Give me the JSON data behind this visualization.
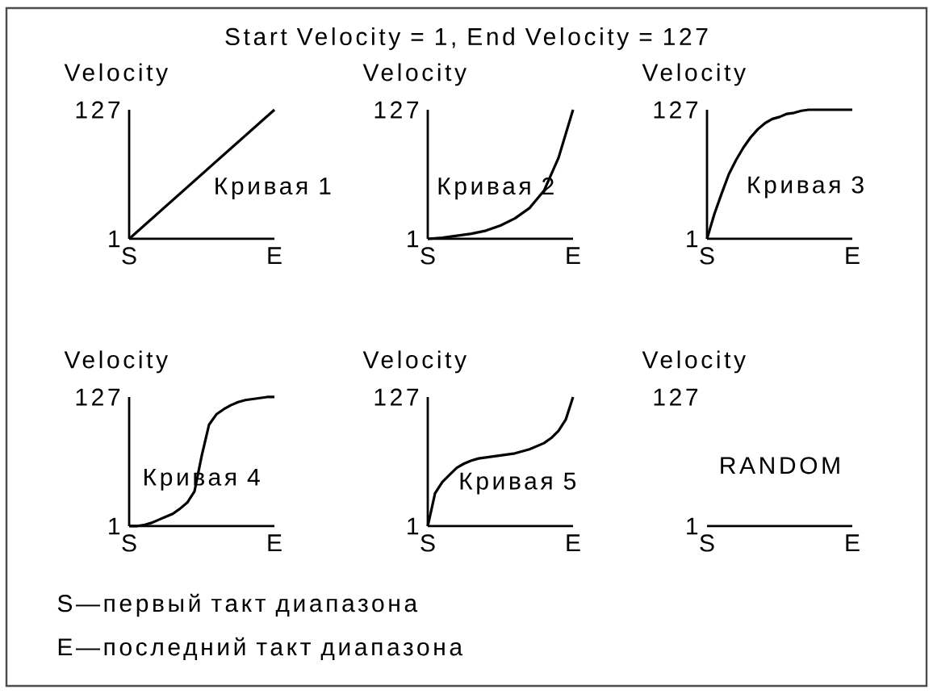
{
  "chart_data": [
    {
      "type": "other",
      "title": "Start Velocity = 1, End Velocity = 127",
      "annotations": [
        "S—первый такт диапазона",
        "E—последний такт диапазона"
      ]
    },
    {
      "type": "line",
      "ylabel": "Velocity",
      "categories": [
        "S",
        "E"
      ],
      "ylim": [
        1,
        127
      ],
      "yticks": [
        1,
        127
      ],
      "series": [
        {
          "name": "Кривая 1",
          "color": "#000000",
          "values": [
            1,
            127
          ]
        }
      ]
    },
    {
      "type": "line",
      "ylabel": "Velocity",
      "categories": [
        "S",
        null,
        null,
        null,
        null,
        null,
        null,
        null,
        null,
        null,
        "E"
      ],
      "ylim": [
        1,
        127
      ],
      "yticks": [
        1,
        127
      ],
      "series": [
        {
          "name": "Кривая 2",
          "color": "#000000",
          "values": [
            1,
            2,
            4,
            6,
            9,
            14,
            21,
            31,
            48,
            80,
            127
          ]
        }
      ]
    },
    {
      "type": "line",
      "ylabel": "Velocity",
      "categories": [
        "S",
        null,
        null,
        null,
        null,
        null,
        null,
        null,
        null,
        null,
        null,
        null,
        null,
        null,
        null,
        null,
        null,
        null,
        null,
        null,
        "E"
      ],
      "ylim": [
        1,
        127
      ],
      "yticks": [
        1,
        127
      ],
      "series": [
        {
          "name": "Кривая 3",
          "color": "#000000",
          "values": [
            1,
            25,
            45,
            64,
            78,
            90,
            100,
            108,
            114,
            118,
            120,
            123,
            124,
            126,
            127,
            127,
            127,
            127,
            127,
            127,
            127
          ]
        }
      ]
    },
    {
      "type": "line",
      "ylabel": "Velocity",
      "categories": [
        "S",
        null,
        null,
        null,
        null,
        null,
        null,
        null,
        null,
        null,
        null,
        null,
        null,
        null,
        null,
        null,
        null,
        null,
        null,
        null,
        "E"
      ],
      "ylim": [
        1,
        127
      ],
      "yticks": [
        1,
        127
      ],
      "series": [
        {
          "name": "Кривая 4",
          "color": "#000000",
          "values": [
            1,
            1,
            2,
            4,
            7,
            10,
            13,
            18,
            24,
            35,
            70,
            100,
            110,
            115,
            119,
            122,
            124,
            125,
            126,
            127,
            127
          ]
        }
      ]
    },
    {
      "type": "line",
      "ylabel": "Velocity",
      "categories": [
        "S",
        null,
        null,
        null,
        null,
        null,
        null,
        null,
        null,
        null,
        null,
        null,
        null,
        null,
        null,
        null,
        null,
        null,
        null,
        null,
        "E"
      ],
      "ylim": [
        1,
        127
      ],
      "yticks": [
        1,
        127
      ],
      "series": [
        {
          "name": "Кривая 5",
          "color": "#000000",
          "values": [
            1,
            33,
            44,
            51,
            58,
            62,
            65,
            67,
            68,
            69,
            70,
            71,
            72,
            74,
            76,
            79,
            82,
            87,
            94,
            105,
            127
          ]
        }
      ]
    },
    {
      "type": "line",
      "ylabel": "Velocity",
      "categories": [
        "S",
        "E"
      ],
      "ylim": [
        1,
        127
      ],
      "yticks": [
        1,
        127
      ],
      "annotations": [
        "RANDOM"
      ]
    }
  ]
}
